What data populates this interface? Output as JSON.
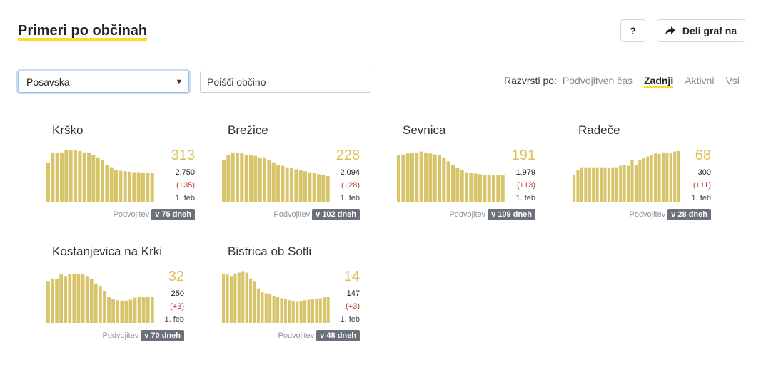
{
  "header": {
    "title": "Primeri po občinah",
    "help_label": "?",
    "share_label": "Deli graf na"
  },
  "filters": {
    "region_selected": "Posavska",
    "search_placeholder": "Poišči občino"
  },
  "sort": {
    "label": "Razvrsti po:",
    "options": [
      "Podvojitven čas",
      "Zadnji",
      "Aktivni",
      "Vsi"
    ],
    "active": "Zadnji"
  },
  "colors": {
    "accent": "#ffd922",
    "bar": "#d8c46b",
    "badge": "#6b717a",
    "delta": "#c0392b"
  },
  "municipalities": [
    {
      "name": "Krško",
      "last": "313",
      "total": "2.750",
      "delta": "(+35)",
      "date": "1. feb",
      "doubling_label": "Podvojitev",
      "doubling": "v 75 dneh",
      "bars": [
        8,
        10,
        10,
        10,
        10.5,
        10.5,
        10.5,
        10.3,
        10,
        10,
        9.5,
        9,
        8.5,
        7.5,
        7,
        6.5,
        6.3,
        6.2,
        6.1,
        6,
        6,
        5.9,
        5.8,
        5.8
      ]
    },
    {
      "name": "Brežice",
      "last": "228",
      "total": "2.094",
      "delta": "(+28)",
      "date": "1. feb",
      "doubling_label": "Podvojitev",
      "doubling": "v 102 dneh",
      "bars": [
        8.5,
        9.5,
        10,
        10,
        9.8,
        9.5,
        9.5,
        9.3,
        9,
        9,
        8.5,
        8,
        7.5,
        7.3,
        7,
        6.8,
        6.6,
        6.4,
        6.2,
        6,
        5.8,
        5.6,
        5.4,
        5.2
      ]
    },
    {
      "name": "Sevnica",
      "last": "191",
      "total": "1.979",
      "delta": "(+13)",
      "date": "1. feb",
      "doubling_label": "Podvojitev",
      "doubling": "v 109 dneh",
      "bars": [
        9.4,
        9.6,
        9.8,
        9.9,
        10,
        10.2,
        10,
        9.8,
        9.6,
        9.4,
        9,
        8.2,
        7.5,
        6.8,
        6.4,
        6,
        5.9,
        5.7,
        5.6,
        5.5,
        5.4,
        5.4,
        5.4,
        5.5
      ]
    },
    {
      "name": "Radeče",
      "last": "68",
      "total": "300",
      "delta": "(+11)",
      "date": "1. feb",
      "doubling_label": "Podvojitev",
      "doubling": "v 28 dneh",
      "bars": [
        5.5,
        6.5,
        7,
        7,
        7,
        7,
        7,
        7,
        7,
        6.8,
        7,
        7,
        7.3,
        7.5,
        7.3,
        8.5,
        7.5,
        8.5,
        8.8,
        9.2,
        9.5,
        9.8,
        9.7,
        10,
        10,
        10,
        10.2,
        10.3
      ]
    },
    {
      "name": "Kostanjevica na Krki",
      "last": "32",
      "total": "250",
      "delta": "(+3)",
      "date": "1. feb",
      "doubling_label": "Podvojitev",
      "doubling": "v 70 dneh",
      "bars": [
        8.5,
        9,
        9,
        10,
        9.5,
        10,
        10,
        10,
        9.8,
        9.5,
        9,
        8,
        7.5,
        6.5,
        5.2,
        4.8,
        4.6,
        4.5,
        4.5,
        4.7,
        5.1,
        5.2,
        5.3,
        5.3,
        5.2
      ]
    },
    {
      "name": "Bistrica ob Sotli",
      "last": "14",
      "total": "147",
      "delta": "(+3)",
      "date": "1. feb",
      "doubling_label": "Podvojitev",
      "doubling": "v 48 dneh",
      "bars": [
        10,
        9.8,
        9.5,
        10,
        10.2,
        10.5,
        10.2,
        9,
        8.5,
        7,
        6.3,
        6,
        5.8,
        5.5,
        5.2,
        5,
        4.8,
        4.6,
        4.5,
        4.4,
        4.5,
        4.6,
        4.7,
        4.8,
        4.9,
        5,
        5.2,
        5.3
      ]
    }
  ]
}
